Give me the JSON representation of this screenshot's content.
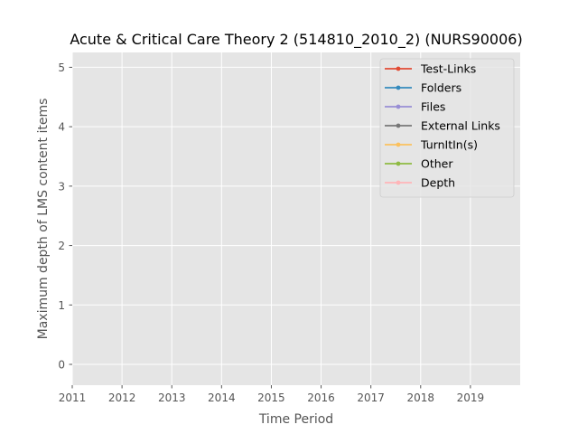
{
  "chart_data": {
    "type": "line",
    "title": "Acute & Critical Care Theory 2 (514810_2010_2) (NURS90006)",
    "xlabel": "Time Period",
    "ylabel": "Maximum depth of LMS content items",
    "xlim": [
      2011,
      2020
    ],
    "ylim": [
      -0.35,
      5.25
    ],
    "x_ticks": [
      "2011",
      "2012",
      "2013",
      "2014",
      "2015",
      "2016",
      "2017",
      "2018",
      "2019"
    ],
    "y_ticks": [
      "0",
      "1",
      "2",
      "3",
      "4",
      "5"
    ],
    "grid": true,
    "legend_position": "top-right",
    "series": [
      {
        "name": "Test-Links",
        "color": "#E24A33",
        "values": []
      },
      {
        "name": "Folders",
        "color": "#348ABD",
        "values": []
      },
      {
        "name": "Files",
        "color": "#988ED5",
        "values": []
      },
      {
        "name": "External Links",
        "color": "#777777",
        "values": []
      },
      {
        "name": "TurnItIn(s)",
        "color": "#FBC15E",
        "values": []
      },
      {
        "name": "Other",
        "color": "#8EBA42",
        "values": []
      },
      {
        "name": "Depth",
        "color": "#FFB5B8",
        "values": []
      }
    ]
  }
}
